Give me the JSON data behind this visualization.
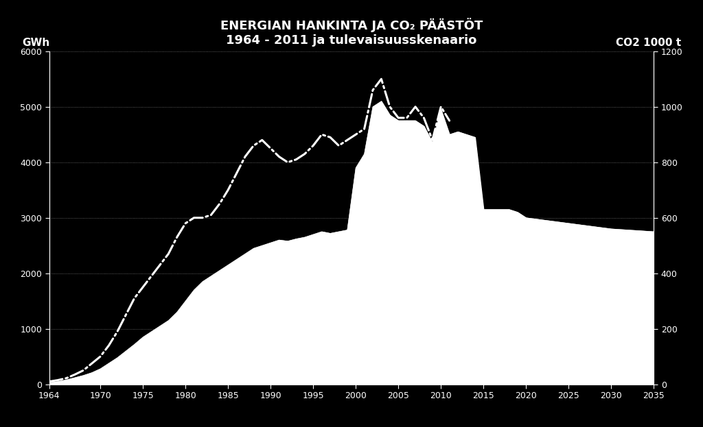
{
  "title_line1": "ENERGIAN HANKINTA JA CO₂ PÄÄSTÖT",
  "title_line2": "1964 - 2011 ja tulevaisuusskenaario",
  "ylabel_left": "GWh",
  "ylabel_right": "CO2 1000 t",
  "background_color": "#000000",
  "text_color": "#ffffff",
  "ylim_left": [
    0,
    6000
  ],
  "ylim_right": [
    0,
    1200
  ],
  "xlim": [
    1964,
    2035
  ],
  "yticks_left": [
    0,
    1000,
    2000,
    3000,
    4000,
    5000,
    6000
  ],
  "yticks_right": [
    0,
    200,
    400,
    600,
    800,
    1000,
    1200
  ],
  "xticks": [
    1964,
    1970,
    1975,
    1980,
    1985,
    1990,
    1995,
    2000,
    2005,
    2010,
    2015,
    2020,
    2025,
    2030,
    2035
  ],
  "area_years": [
    1964,
    1965,
    1966,
    1967,
    1968,
    1969,
    1970,
    1971,
    1972,
    1973,
    1974,
    1975,
    1976,
    1977,
    1978,
    1979,
    1980,
    1981,
    1982,
    1983,
    1984,
    1985,
    1986,
    1987,
    1988,
    1989,
    1990,
    1991,
    1992,
    1993,
    1994,
    1995,
    1996,
    1997,
    1998,
    1999,
    2000,
    2001,
    2002,
    2003,
    2004,
    2005,
    2006,
    2007,
    2008,
    2009,
    2010,
    2011,
    2012,
    2013,
    2014,
    2015,
    2016,
    2017,
    2018,
    2019,
    2020,
    2021,
    2022,
    2023,
    2024,
    2025,
    2026,
    2027,
    2028,
    2029,
    2030,
    2031,
    2032,
    2033,
    2034,
    2035
  ],
  "area_values": [
    30,
    50,
    80,
    120,
    160,
    210,
    280,
    380,
    480,
    600,
    720,
    850,
    950,
    1050,
    1150,
    1300,
    1500,
    1700,
    1850,
    1950,
    2050,
    2150,
    2250,
    2350,
    2450,
    2500,
    2550,
    2600,
    2580,
    2620,
    2650,
    2700,
    2750,
    2720,
    2750,
    2780,
    3900,
    4150,
    5000,
    5100,
    4850,
    4750,
    4750,
    4750,
    4650,
    4350,
    4950,
    4500,
    4550,
    4500,
    4450,
    3150,
    3150,
    3150,
    3150,
    3100,
    3000,
    2980,
    2960,
    2940,
    2920,
    2900,
    2880,
    2860,
    2840,
    2820,
    2800,
    2790,
    2780,
    2770,
    2760,
    2750
  ],
  "co2_years": [
    1964,
    1965,
    1966,
    1967,
    1968,
    1969,
    1970,
    1971,
    1972,
    1973,
    1974,
    1975,
    1976,
    1977,
    1978,
    1979,
    1980,
    1981,
    1982,
    1983,
    1984,
    1985,
    1986,
    1987,
    1988,
    1989,
    1990,
    1991,
    1992,
    1993,
    1994,
    1995,
    1996,
    1997,
    1998,
    1999,
    2000,
    2001,
    2002,
    2003,
    2004,
    2005,
    2006,
    2007,
    2008,
    2009,
    2010,
    2011
  ],
  "co2_values": [
    10,
    15,
    22,
    35,
    50,
    75,
    100,
    140,
    190,
    250,
    310,
    350,
    390,
    430,
    470,
    530,
    580,
    600,
    600,
    610,
    650,
    700,
    760,
    820,
    860,
    880,
    850,
    820,
    800,
    810,
    830,
    860,
    900,
    890,
    860,
    880,
    900,
    920,
    1060,
    1100,
    1000,
    960,
    960,
    1000,
    960,
    880,
    1000,
    950
  ]
}
